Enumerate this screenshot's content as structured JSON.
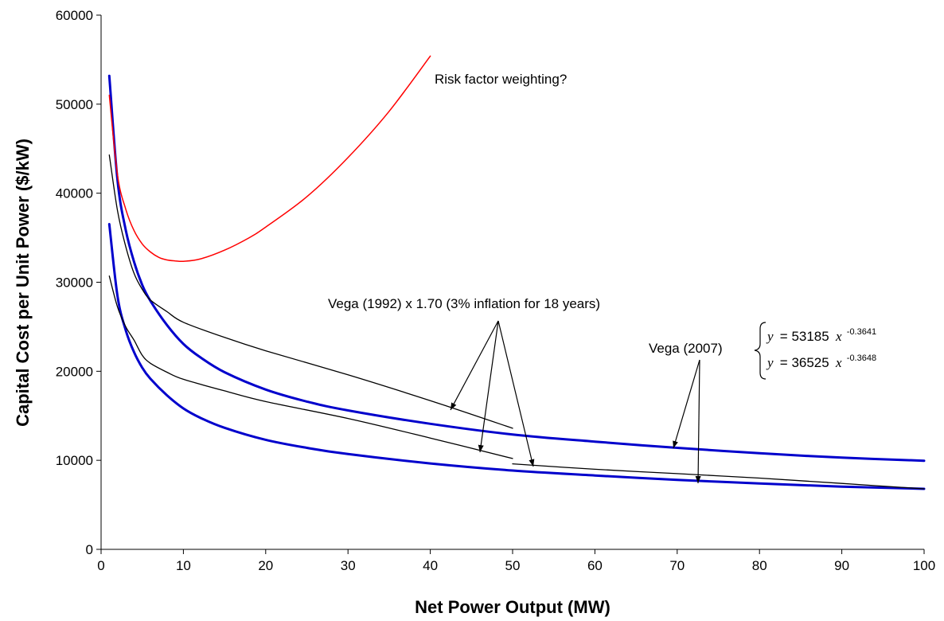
{
  "chart_data": {
    "type": "line",
    "xlabel": "Net Power Output (MW)",
    "ylabel": "Capital Cost per Unit Power ($/kW)",
    "xlim": [
      0,
      100
    ],
    "ylim": [
      0,
      60000
    ],
    "x_ticks": [
      "0",
      "10",
      "20",
      "30",
      "40",
      "50",
      "60",
      "70",
      "80",
      "90",
      "100"
    ],
    "y_ticks": [
      "0",
      "10000",
      "20000",
      "30000",
      "40000",
      "50000",
      "60000"
    ],
    "grid": false,
    "series": [
      {
        "color": "#0000cc",
        "x": [
          1,
          2,
          3,
          4,
          5,
          6,
          8,
          10,
          12,
          15,
          20,
          25,
          30,
          40,
          50,
          60,
          70,
          80,
          90,
          100
        ],
        "y": [
          53185,
          41400,
          35850,
          32300,
          29700,
          27900,
          25200,
          23070,
          21600,
          19900,
          17950,
          16600,
          15600,
          14100,
          12900,
          12100,
          11400,
          10800,
          10300,
          9950
        ]
      },
      {
        "color": "#0000cc",
        "x": [
          1,
          2,
          3,
          4,
          5,
          6,
          8,
          10,
          12,
          15,
          20,
          25,
          30,
          40,
          50,
          60,
          70,
          80,
          90,
          100
        ],
        "y": [
          36525,
          28400,
          24600,
          22150,
          20400,
          19150,
          17300,
          15830,
          14800,
          13650,
          12300,
          11400,
          10700,
          9650,
          8850,
          8300,
          7800,
          7400,
          7050,
          6800
        ]
      },
      {
        "color": "#ff0000",
        "x": [
          1,
          2,
          3,
          4,
          5,
          6,
          7,
          8,
          9,
          10,
          12,
          15,
          18,
          20,
          25,
          30,
          35,
          40
        ],
        "y": [
          51000,
          42000,
          38200,
          35800,
          34300,
          33400,
          32800,
          32500,
          32400,
          32350,
          32600,
          33600,
          35000,
          36200,
          39600,
          44000,
          49200,
          55400
        ]
      },
      {
        "color": "#000000",
        "x": [
          1,
          2,
          3,
          4,
          5,
          6,
          8,
          10,
          15,
          20,
          30,
          40,
          50
        ],
        "y": [
          44300,
          38000,
          34000,
          31000,
          29200,
          28000,
          26700,
          25500,
          23800,
          22300,
          19600,
          16700,
          13600
        ]
      },
      {
        "color": "#000000",
        "x": [
          1,
          2,
          3,
          4,
          5,
          6,
          8,
          10,
          15,
          20,
          30,
          40,
          50
        ],
        "y": [
          30700,
          27200,
          25000,
          23500,
          21800,
          20900,
          19900,
          19100,
          17800,
          16600,
          14700,
          12500,
          10200
        ]
      },
      {
        "color": "#000000",
        "x": [
          50,
          60,
          70,
          80,
          90,
          100
        ],
        "y": [
          9600,
          9000,
          8500,
          8000,
          7400,
          6800
        ]
      }
    ],
    "annotations": {
      "risk_label": "Risk factor weighting?",
      "vega1992_label": "Vega (1992) x 1.70 (3% inflation for 18 years)",
      "vega2007_label": "Vega (2007)",
      "eq1_y": "y",
      "eq1_mid": "= 53185",
      "eq1_x": "x",
      "eq1_exp": "-0.3641",
      "eq2_y": "y",
      "eq2_mid": "= 36525",
      "eq2_x": "x",
      "eq2_exp": "-0.3648"
    }
  }
}
